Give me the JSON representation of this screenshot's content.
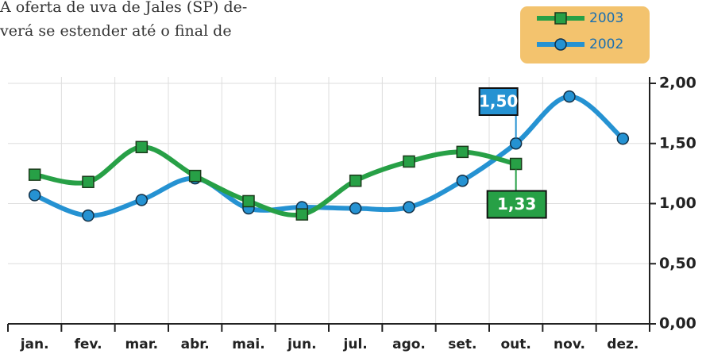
{
  "chart_data": {
    "type": "line",
    "annotations": [
      "A oferta de uva de Jales (SP) de-",
      "verá se estender até o final de"
    ],
    "categories": [
      "jan.",
      "fev.",
      "mar.",
      "abr.",
      "mai.",
      "jun.",
      "jul.",
      "ago.",
      "set.",
      "out.",
      "nov.",
      "dez."
    ],
    "series": [
      {
        "name": "2003",
        "color": "#27a046",
        "marker": "square",
        "values": [
          1.24,
          1.18,
          1.47,
          1.23,
          1.02,
          0.91,
          1.19,
          1.35,
          1.43,
          1.33,
          null,
          null
        ],
        "value_labels": [
          null,
          null,
          null,
          null,
          null,
          null,
          null,
          null,
          null,
          "1,33",
          null,
          null
        ]
      },
      {
        "name": "2002",
        "color": "#2592d2",
        "marker": "circle",
        "values": [
          1.07,
          0.9,
          1.03,
          1.21,
          0.96,
          0.97,
          0.96,
          0.97,
          1.19,
          1.5,
          1.89,
          1.54
        ],
        "value_labels": [
          null,
          null,
          null,
          null,
          null,
          null,
          null,
          null,
          null,
          "1,50",
          null,
          null
        ]
      }
    ],
    "ylim": [
      0,
      2
    ],
    "yticks": [
      {
        "value": 0,
        "label": "0,00"
      },
      {
        "value": 0.5,
        "label": "0,50"
      },
      {
        "value": 1,
        "label": "1,00"
      },
      {
        "value": 1.5,
        "label": "1,50"
      },
      {
        "value": 2,
        "label": "2,00"
      }
    ],
    "grid": true
  }
}
